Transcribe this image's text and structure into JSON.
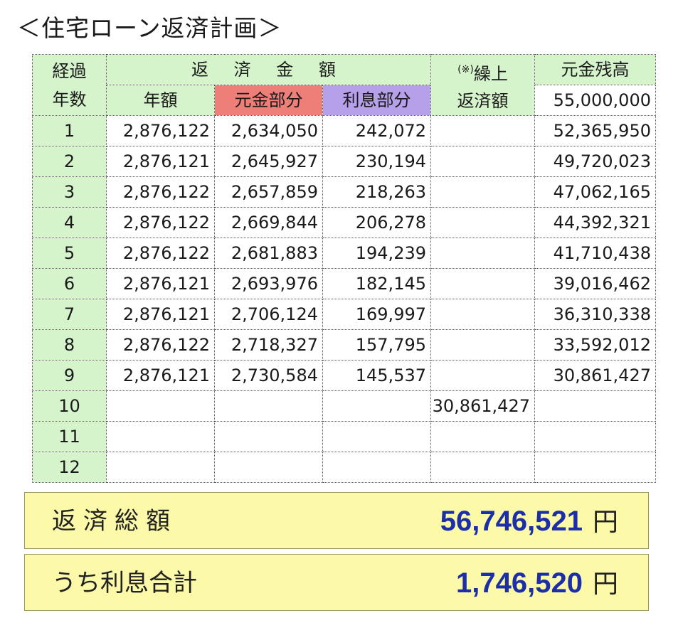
{
  "title": "＜住宅ローン返済計画＞",
  "table": {
    "headers": {
      "years_line1": "経過",
      "years_line2": "年数",
      "repayment_amount": "返 済 金 額",
      "annual": "年額",
      "principal": "元金部分",
      "interest": "利息部分",
      "prepay_mark": "(※)",
      "prepay_line1": "繰上",
      "prepay_line2": "返済額",
      "balance": "元金残高",
      "initial_balance": "55,000,000"
    },
    "rows": [
      {
        "year": "1",
        "annual": "2,876,122",
        "principal": "2,634,050",
        "interest": "242,072",
        "prepayment": "",
        "balance": "52,365,950"
      },
      {
        "year": "2",
        "annual": "2,876,121",
        "principal": "2,645,927",
        "interest": "230,194",
        "prepayment": "",
        "balance": "49,720,023"
      },
      {
        "year": "3",
        "annual": "2,876,122",
        "principal": "2,657,859",
        "interest": "218,263",
        "prepayment": "",
        "balance": "47,062,165"
      },
      {
        "year": "4",
        "annual": "2,876,122",
        "principal": "2,669,844",
        "interest": "206,278",
        "prepayment": "",
        "balance": "44,392,321"
      },
      {
        "year": "5",
        "annual": "2,876,122",
        "principal": "2,681,883",
        "interest": "194,239",
        "prepayment": "",
        "balance": "41,710,438"
      },
      {
        "year": "6",
        "annual": "2,876,121",
        "principal": "2,693,976",
        "interest": "182,145",
        "prepayment": "",
        "balance": "39,016,462"
      },
      {
        "year": "7",
        "annual": "2,876,121",
        "principal": "2,706,124",
        "interest": "169,997",
        "prepayment": "",
        "balance": "36,310,338"
      },
      {
        "year": "8",
        "annual": "2,876,122",
        "principal": "2,718,327",
        "interest": "157,795",
        "prepayment": "",
        "balance": "33,592,012"
      },
      {
        "year": "9",
        "annual": "2,876,121",
        "principal": "2,730,584",
        "interest": "145,537",
        "prepayment": "",
        "balance": "30,861,427"
      },
      {
        "year": "10",
        "annual": "",
        "principal": "",
        "interest": "",
        "prepayment": "30,861,427",
        "balance": ""
      },
      {
        "year": "11",
        "annual": "",
        "principal": "",
        "interest": "",
        "prepayment": "",
        "balance": ""
      },
      {
        "year": "12",
        "annual": "",
        "principal": "",
        "interest": "",
        "prepayment": "",
        "balance": ""
      }
    ]
  },
  "summary": {
    "total_label": "返済総額",
    "total_value": "56,746,521",
    "interest_label": "うち利息合計",
    "interest_value": "1,746,520",
    "unit": "円"
  },
  "colors": {
    "header_green": "#d6f4cc",
    "principal_red": "#ee7f78",
    "interest_purple": "#b7a0ea",
    "summary_yellow": "#fcfaa8",
    "value_blue": "#1c2fa8"
  }
}
